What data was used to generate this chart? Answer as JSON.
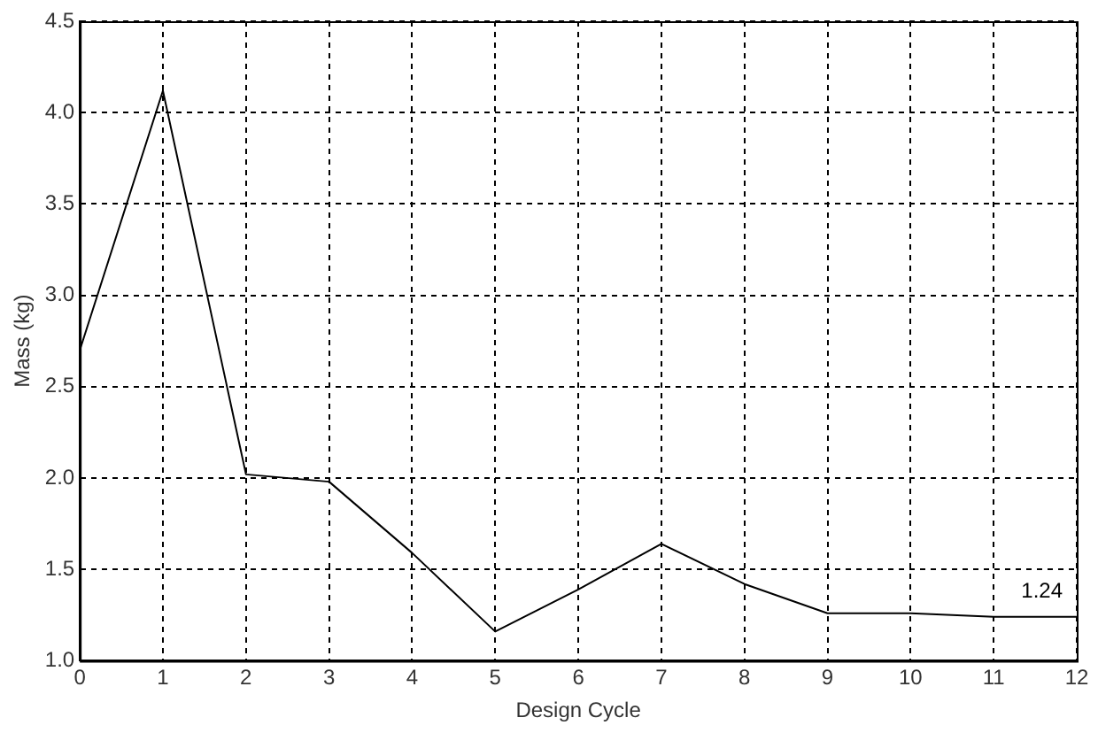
{
  "chart_data": {
    "type": "line",
    "xlabel": "Design Cycle",
    "ylabel": "Mass (kg)",
    "x": [
      0,
      1,
      2,
      3,
      4,
      5,
      6,
      7,
      8,
      9,
      10,
      11,
      12
    ],
    "series": [
      {
        "color": "#000000",
        "values": [
          2.7,
          4.12,
          2.02,
          1.98,
          1.59,
          1.16,
          1.39,
          1.64,
          1.42,
          1.26,
          1.26,
          1.24,
          1.24
        ]
      }
    ],
    "xlim": [
      0,
      12
    ],
    "xticks": [
      0,
      1,
      2,
      3,
      4,
      5,
      6,
      7,
      8,
      9,
      10,
      11,
      12
    ],
    "ylim": [
      1.0,
      4.5
    ],
    "yticks": [
      {
        "value": 1.0,
        "label": "1.0"
      },
      {
        "value": 1.5,
        "label": "1.5"
      },
      {
        "value": 2.0,
        "label": "2.0"
      },
      {
        "value": 2.5,
        "label": "2.5"
      },
      {
        "value": 3.0,
        "label": "3.0"
      },
      {
        "value": 3.5,
        "label": "3.5"
      },
      {
        "value": 4.0,
        "label": "4.0"
      },
      {
        "value": 4.5,
        "label": "4.5"
      }
    ],
    "grid": true,
    "marker": "none",
    "line_style": "solid",
    "legend": false,
    "annotations": [
      {
        "text": "1.24",
        "x": 12,
        "y": 1.24
      }
    ]
  }
}
